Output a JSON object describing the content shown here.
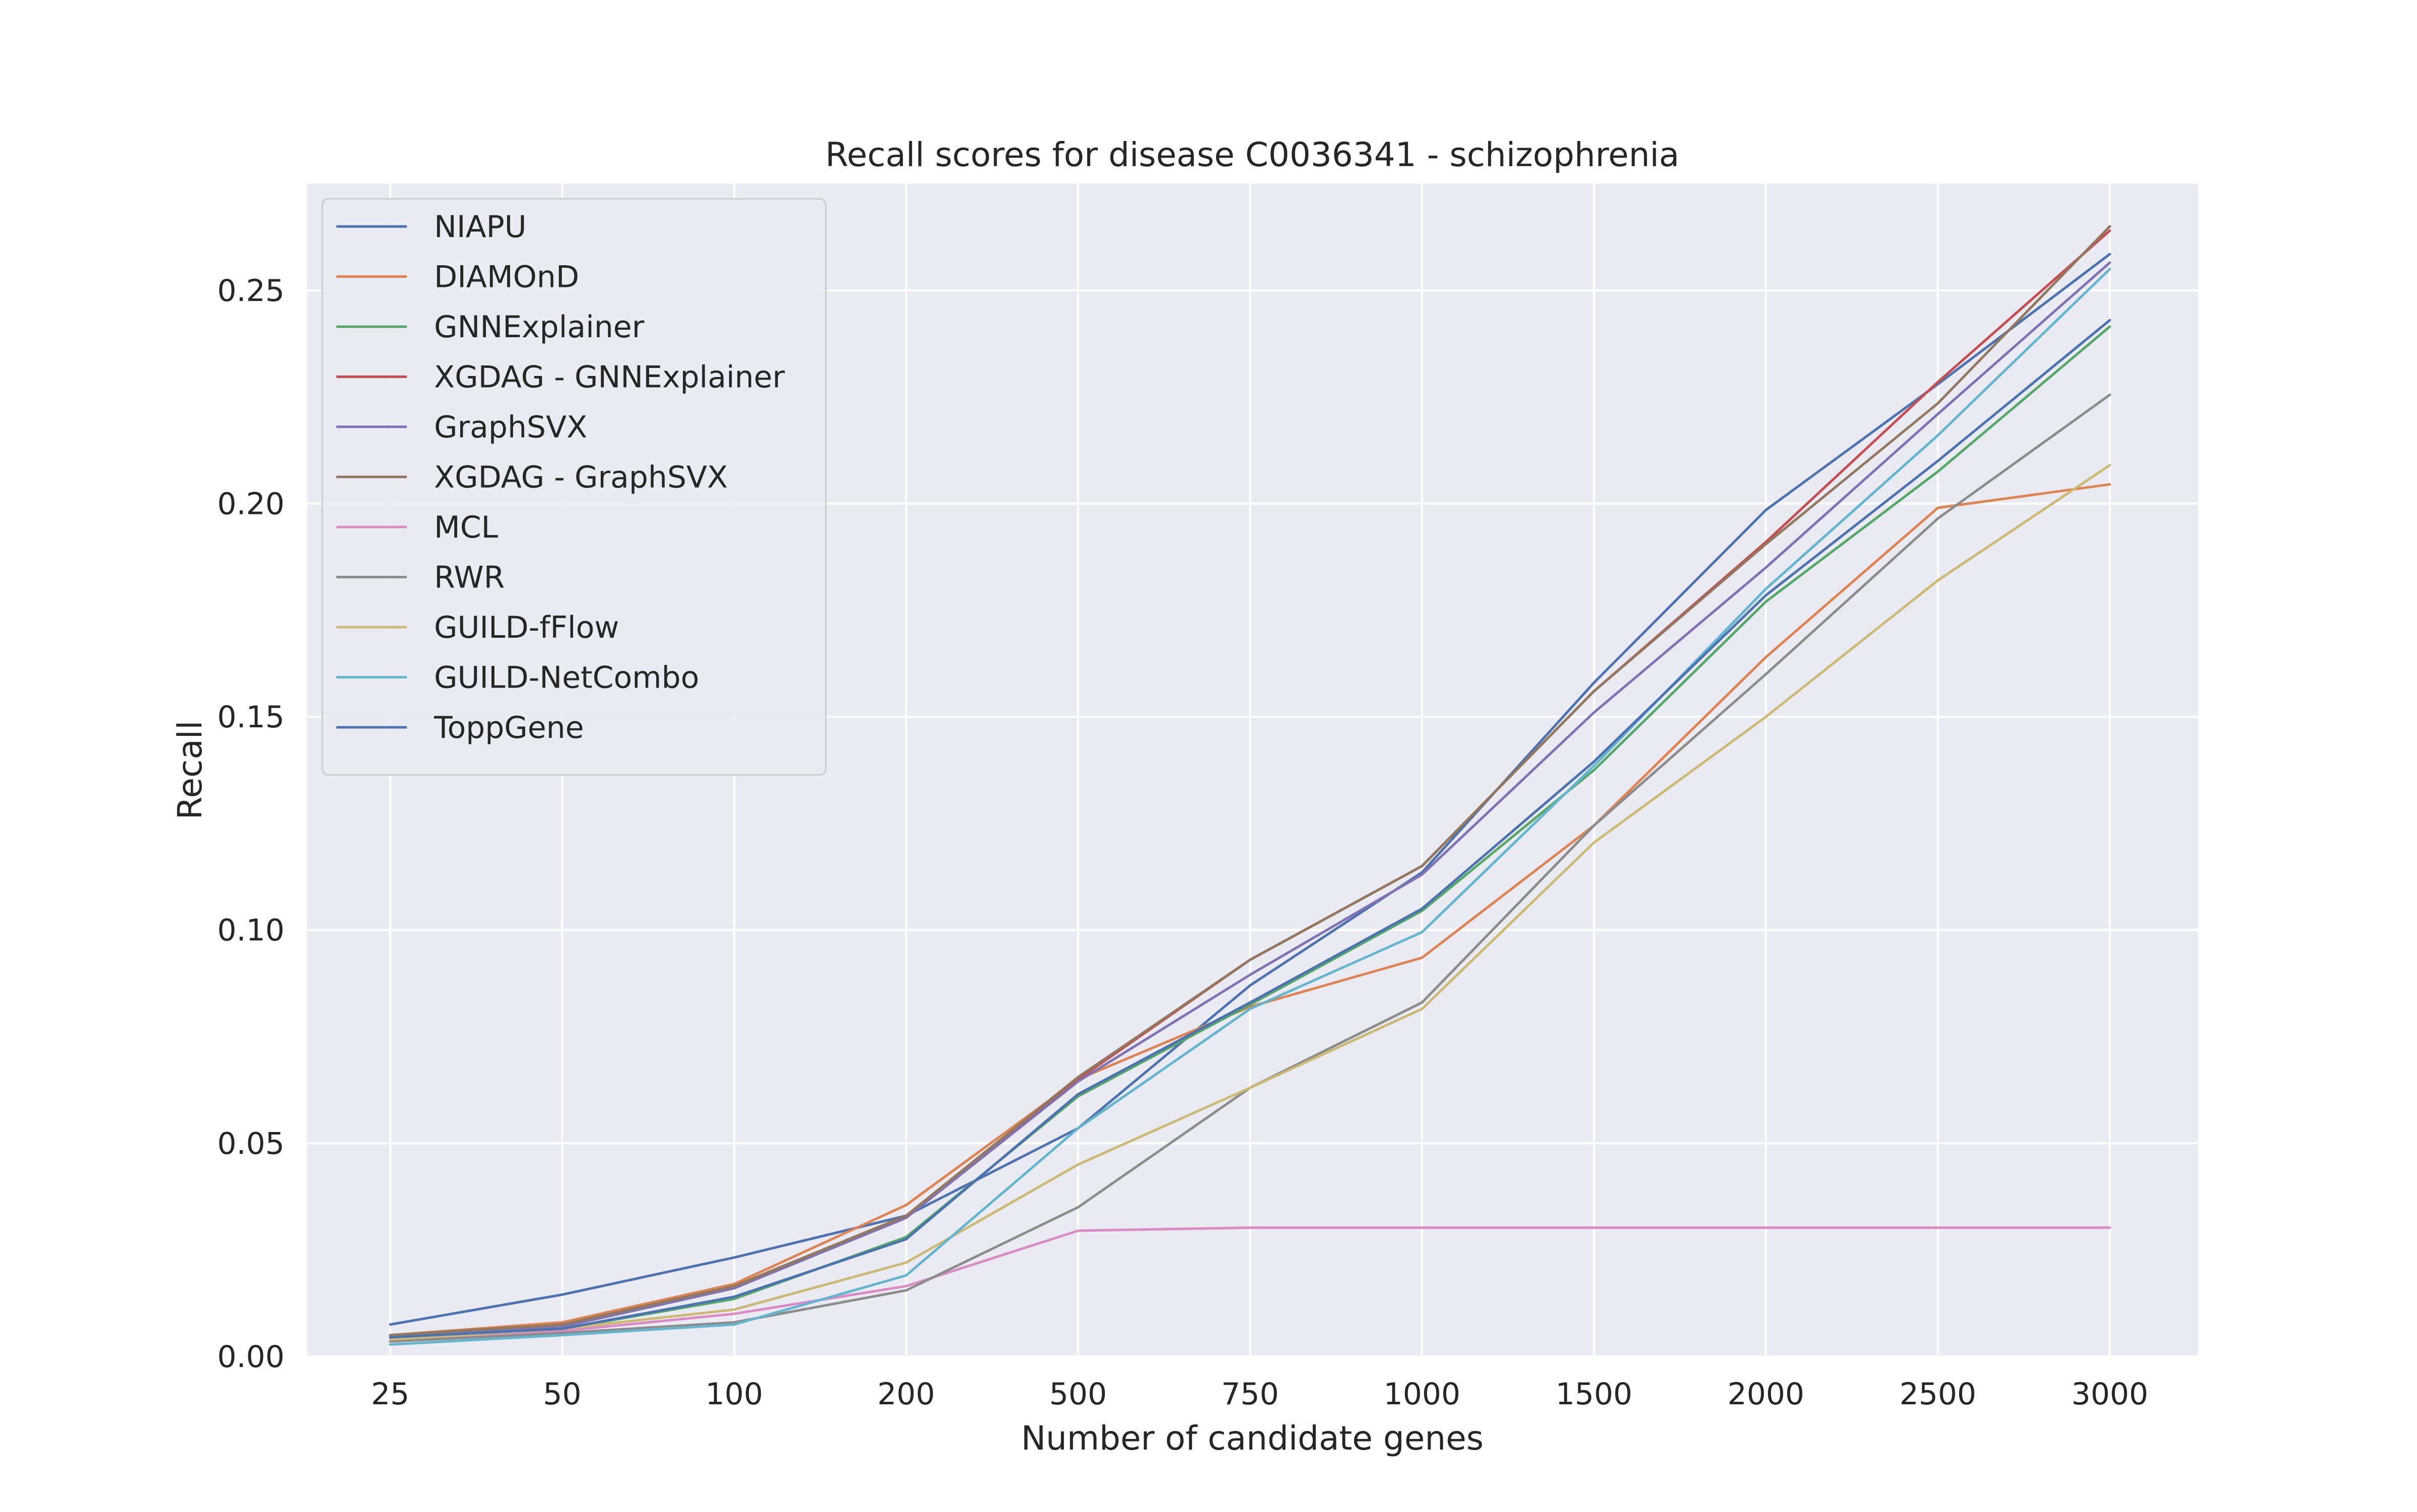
{
  "chart_data": {
    "type": "line",
    "title": "Recall scores for disease C0036341 - schizophrenia",
    "xlabel": "Number of candidate genes",
    "ylabel": "Recall",
    "categories": [
      "25",
      "50",
      "100",
      "200",
      "500",
      "750",
      "1000",
      "1500",
      "2000",
      "2500",
      "3000"
    ],
    "ylim": [
      0,
      0.275
    ],
    "yticks": [
      0.0,
      0.05,
      0.1,
      0.15,
      0.2,
      0.25
    ],
    "ytick_labels": [
      "0.00",
      "0.05",
      "0.10",
      "0.15",
      "0.20",
      "0.25"
    ],
    "grid": true,
    "legend_position": "top-left",
    "series": [
      {
        "name": "NIAPU",
        "color": "#4c72b0",
        "values": [
          0.0075,
          0.0145,
          0.0232,
          0.033,
          0.0535,
          0.087,
          0.1135,
          0.158,
          0.1985,
          0.228,
          0.2585
        ]
      },
      {
        "name": "DIAMOnD",
        "color": "#dd8452",
        "values": [
          0.005,
          0.008,
          0.017,
          0.0355,
          0.065,
          0.082,
          0.0935,
          0.1245,
          0.164,
          0.199,
          0.2045
        ]
      },
      {
        "name": "GNNExplainer",
        "color": "#55a868",
        "values": [
          0.0045,
          0.0065,
          0.0135,
          0.028,
          0.061,
          0.0825,
          0.1045,
          0.1375,
          0.177,
          0.2075,
          0.2415
        ]
      },
      {
        "name": "XGDAG - GNNExplainer",
        "color": "#c44e52",
        "values": [
          0.005,
          0.0075,
          0.0165,
          0.033,
          0.065,
          0.093,
          0.115,
          0.156,
          0.191,
          0.2285,
          0.264
        ]
      },
      {
        "name": "GraphSVX",
        "color": "#8172b3",
        "values": [
          0.0045,
          0.007,
          0.016,
          0.0325,
          0.0645,
          0.0895,
          0.113,
          0.151,
          0.185,
          0.221,
          0.2565
        ]
      },
      {
        "name": "XGDAG - GraphSVX",
        "color": "#937860",
        "values": [
          0.005,
          0.0075,
          0.0165,
          0.033,
          0.0655,
          0.093,
          0.115,
          0.156,
          0.1905,
          0.2235,
          0.265
        ]
      },
      {
        "name": "MCL",
        "color": "#da8bc3",
        "values": [
          0.004,
          0.006,
          0.01,
          0.0165,
          0.0295,
          0.0302,
          0.0302,
          0.0302,
          0.0302,
          0.0302,
          0.0302
        ]
      },
      {
        "name": "RWR",
        "color": "#8c8c8c",
        "values": [
          0.0035,
          0.0055,
          0.008,
          0.0155,
          0.035,
          0.063,
          0.083,
          0.1245,
          0.16,
          0.1965,
          0.2255
        ]
      },
      {
        "name": "GUILD-fFlow",
        "color": "#ccb974",
        "values": [
          0.004,
          0.0065,
          0.011,
          0.022,
          0.045,
          0.063,
          0.0815,
          0.1205,
          0.15,
          0.182,
          0.209
        ]
      },
      {
        "name": "GUILD-NetCombo",
        "color": "#64b5cd",
        "values": [
          0.0028,
          0.005,
          0.0075,
          0.019,
          0.0535,
          0.0815,
          0.0995,
          0.1385,
          0.18,
          0.216,
          0.255
        ]
      },
      {
        "name": "ToppGene",
        "color": "#4c72b0",
        "values": [
          0.0045,
          0.0065,
          0.014,
          0.0275,
          0.0615,
          0.083,
          0.105,
          0.1395,
          0.1785,
          0.21,
          0.243
        ]
      }
    ]
  }
}
